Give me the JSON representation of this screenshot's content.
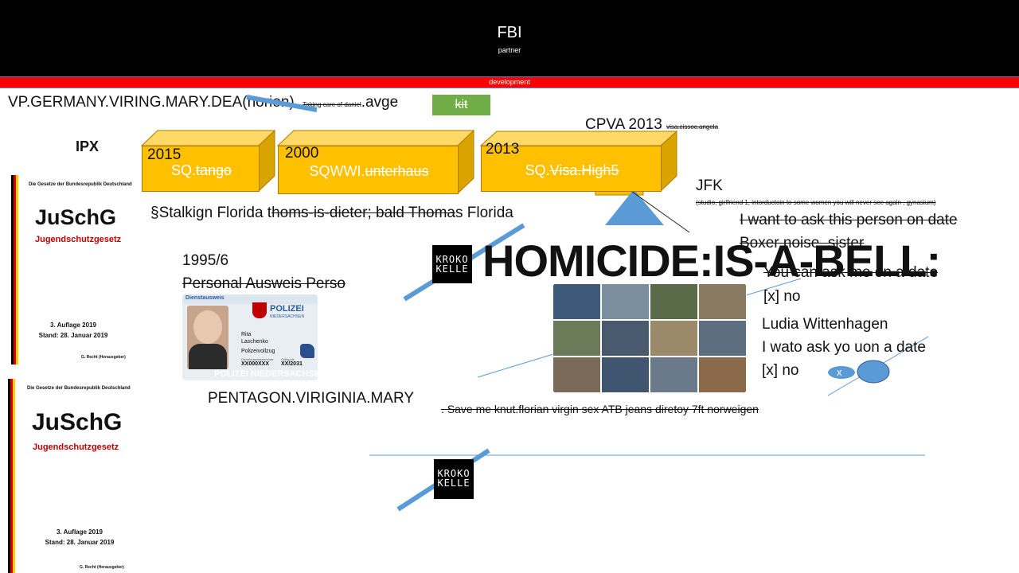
{
  "header": {
    "title": "FBI",
    "subtitle": "partner"
  },
  "dev_bar": {
    "label": "development"
  },
  "top_line": {
    "main": "VP.GERMANY.VIRING.MARY.DEA(",
    "struck_word": "horion",
    "close": ").",
    "small_strike": "Taking care of daniel",
    "tail": ".avge"
  },
  "kit_button": "kit",
  "ipx": "IPX",
  "cpva": {
    "label": "CPVA 2013",
    "small": "visa.cissoc.angela"
  },
  "boxes": [
    {
      "year": "2015",
      "prefix": "SQ.",
      "struck": "tango"
    },
    {
      "year": "2000",
      "prefix": "SQWWI.",
      "struck": "unterhaus"
    },
    {
      "year": "2013",
      "prefix": "SQ.",
      "struck": "Visa.High5"
    }
  ],
  "jfk": {
    "label": "JFK",
    "small": "(studio, girlfriend 1, intorductoin to some women you will never see again , gynasium)"
  },
  "stalking_line": {
    "start": "§Stalkign Florida t",
    "struck": "homs-is-dieter; bald Thoma",
    "end": "s Florida"
  },
  "right_texts": {
    "line1": "I want to ask this person on date",
    "line2": "Boxer noise, sister",
    "line3": "You can ask me on a date",
    "line4": "[x] no",
    "line5": "Ludia Wittenhagen",
    "line6": "I wato ask yo uon a date",
    "line7": "[x] no",
    "bubble_x": "x"
  },
  "homicide": "HOMICIDE:IS-A-BELL:",
  "logo": {
    "line1": "KROKO",
    "line2": "KELLE"
  },
  "year_19956": "1995/6",
  "perso": "Personal Ausweis Perso",
  "idcard": {
    "header": "Dienstausweis",
    "police": "POLIZEI",
    "state": "NIEDERSACHSEN",
    "first": "Rita",
    "last": "Laschenko",
    "role": "Polizeivollzug",
    "number_label": "Dienstausweisnummer",
    "number": "XX000XXX",
    "valid_label": "Gültig bis",
    "valid": "XX/2031",
    "watermark": "POLIZEI NIEDERSACHSEN"
  },
  "pentagon": "PENTAGON.VIRIGINIA.MARY",
  "save_line": ". Save me knut.florian virgin sex ATB jeans diretoy 7ft norweigen",
  "books": [
    {
      "top": "Die Gesetze der Bundesrepublik Deutschland",
      "title": "JuSchG",
      "sub": "Jugendschutzgesetz",
      "ed1": "3. Auflage 2019",
      "ed2": "Stand: 28. Januar 2019",
      "pub": "G. Recht (Herausgeber)"
    },
    {
      "top": "Die Gesetze der Bundesrepublik Deutschland",
      "title": "JuSchG",
      "sub": "Jugendschutzgesetz",
      "ed1": "3. Auflage 2019",
      "ed2": "Stand: 28. Januar 2019",
      "pub": "G. Recht (Herausgeber)"
    }
  ],
  "colors": {
    "accent_blue": "#5b9bd5",
    "gold": "#ffc000",
    "green": "#70ad47",
    "red": "#ff0000"
  }
}
